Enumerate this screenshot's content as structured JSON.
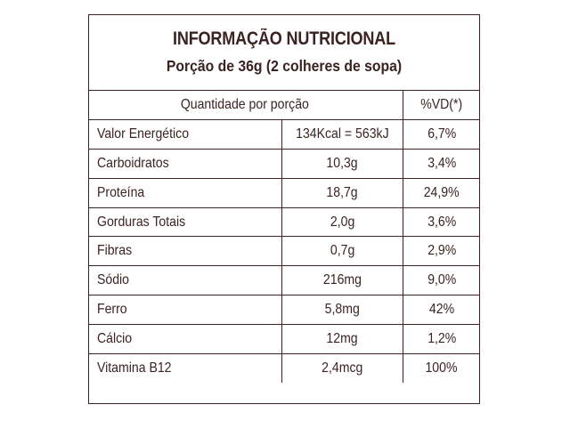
{
  "panel": {
    "title": "INFORMAÇÃO NUTRICIONAL",
    "subtitle": "Porção de 36g (2 colheres de sopa)"
  },
  "table": {
    "header": {
      "quantity": "Quantidade por porção",
      "vd": "%VD(*)"
    },
    "rows": [
      {
        "name": "Valor Energético",
        "amount": "134Kcal = 563kJ",
        "vd": "6,7%"
      },
      {
        "name": "Carboidratos",
        "amount": "10,3g",
        "vd": "3,4%"
      },
      {
        "name": "Proteína",
        "amount": "18,7g",
        "vd": "24,9%"
      },
      {
        "name": "Gorduras Totais",
        "amount": "2,0g",
        "vd": "3,6%"
      },
      {
        "name": "Fibras",
        "amount": "0,7g",
        "vd": "2,9%"
      },
      {
        "name": "Sódio",
        "amount": "216mg",
        "vd": "9,0%"
      },
      {
        "name": "Ferro",
        "amount": "5,8mg",
        "vd": "42%"
      },
      {
        "name": "Cálcio",
        "amount": "12mg",
        "vd": "1,2%"
      },
      {
        "name": "Vitamina B12",
        "amount": "2,4mcg",
        "vd": "100%"
      }
    ]
  },
  "colors": {
    "ink": "#3a2320",
    "background": "#ffffff"
  }
}
